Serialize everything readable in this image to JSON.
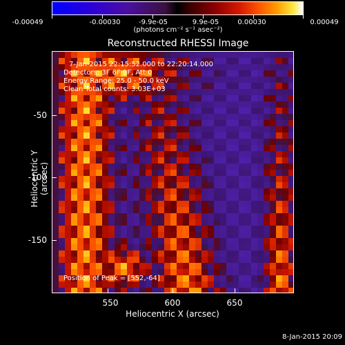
{
  "colorbar": {
    "ticks": [
      "-0.00049",
      "-0.00030",
      "-9.9e-05",
      "9.9e-05",
      "0.00030",
      "0.00049"
    ],
    "units": "(photons cm⁻² s⁻¹ asec⁻²)"
  },
  "title": "Reconstructed RHESSI Image",
  "info": {
    "line1": "7-Jan-2015 22:15:52.000 to 22:20:14.000",
    "line2": "Detectors: 3F 6F 9F, Att 0",
    "line3": "Energy Range: 25.0 - 50.0 keV",
    "line4": "Clean     Total counts: 3.03E+03",
    "peak": "Position of Peak = [552,-64]"
  },
  "axes": {
    "xlabel": "Heliocentric X (arcsec)",
    "ylabel": "Heliocentric Y (arcsec)",
    "xticks": [
      "550",
      "600",
      "650"
    ],
    "yticks": [
      "-50",
      "-100",
      "-150"
    ]
  },
  "timestamp": "8-Jan-2015 20:09"
}
